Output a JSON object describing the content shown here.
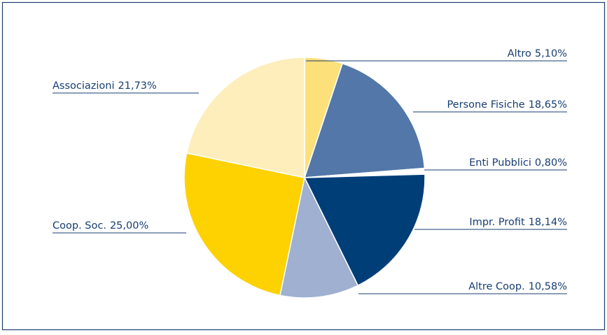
{
  "chart_data": {
    "type": "pie",
    "categories": [
      "Altro",
      "Persone Fisiche",
      "Enti Pubblici",
      "Impr. Profit",
      "Altre Coop.",
      "Coop. Soc.",
      "Associazioni"
    ],
    "values": [
      5.1,
      18.65,
      0.8,
      18.14,
      10.58,
      25.0,
      21.73
    ],
    "value_labels": [
      "5,10%",
      "18,65%",
      "0,80%",
      "18,14%",
      "10,58%",
      "25,00%",
      "21,73%"
    ],
    "colors": [
      "#fde07a",
      "#5277a8",
      "#ffffff",
      "#003e78",
      "#9fb0d0",
      "#fed100",
      "#fdeebb"
    ]
  }
}
